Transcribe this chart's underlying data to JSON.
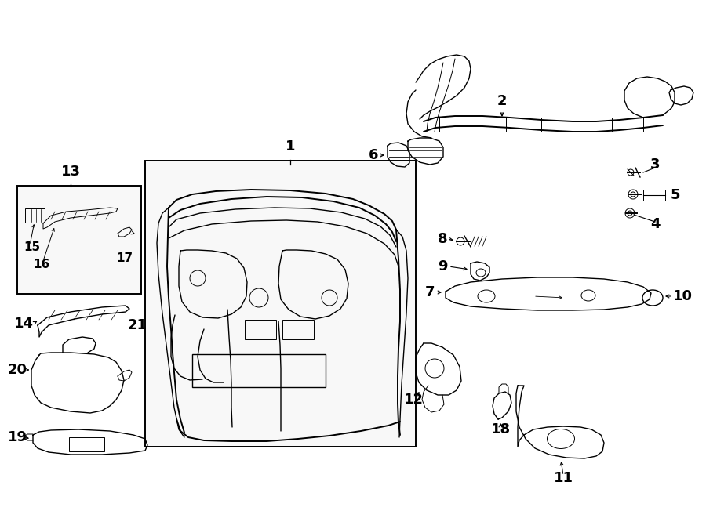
{
  "bg_color": "#ffffff",
  "line_color": "#000000",
  "lw": 1.0,
  "lw_thick": 1.4,
  "lw_thin": 0.7,
  "label_fs": 13,
  "small_fs": 11
}
